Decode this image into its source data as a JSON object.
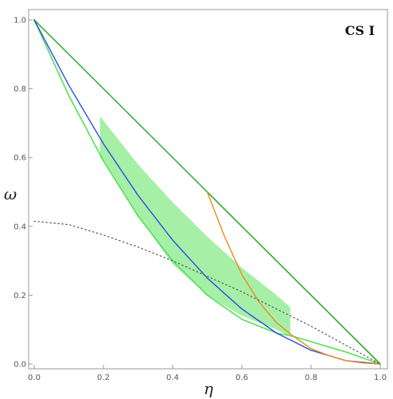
{
  "chart_data": {
    "type": "line",
    "title": "",
    "annotation": "CS I",
    "xlabel": "η",
    "ylabel": "ω",
    "xlim": [
      0.0,
      1.0
    ],
    "ylim": [
      0.0,
      1.0
    ],
    "x_ticks": [
      "0.0",
      "0.2",
      "0.4",
      "0.6",
      "0.8",
      "1.0"
    ],
    "y_ticks": [
      "0.0",
      "0.2",
      "0.4",
      "0.6",
      "0.8",
      "1.0"
    ],
    "grid": false,
    "legend": "none",
    "colors": {
      "green": "#3fae3f",
      "light_green": "#55e055",
      "band": "#a6efa6",
      "blue": "#2b4fe0",
      "orange": "#f08a1d",
      "dotted": "#555555"
    },
    "series": [
      {
        "style": "green-line",
        "x": [
          0.0,
          1.0
        ],
        "y": [
          1.0,
          0.0
        ]
      },
      {
        "style": "green-line",
        "x": [
          0.5,
          1.0
        ],
        "y": [
          0.5,
          0.0
        ]
      },
      {
        "style": "light-green-line",
        "x": [
          0.0,
          0.1,
          0.2,
          0.3,
          0.4,
          0.5,
          0.6,
          0.7,
          0.75,
          0.8,
          0.9,
          1.0
        ],
        "y": [
          1.0,
          0.78,
          0.59,
          0.43,
          0.3,
          0.2,
          0.13,
          0.09,
          0.08,
          0.065,
          0.035,
          0.0
        ]
      },
      {
        "style": "blue-line",
        "x": [
          0.0,
          0.1,
          0.2,
          0.3,
          0.4,
          0.5,
          0.6,
          0.7,
          0.8,
          0.9,
          1.0
        ],
        "y": [
          1.0,
          0.81,
          0.64,
          0.49,
          0.36,
          0.25,
          0.16,
          0.09,
          0.04,
          0.01,
          0.0
        ]
      },
      {
        "style": "orange-line",
        "x": [
          0.5,
          0.55,
          0.6,
          0.65,
          0.7,
          0.75,
          0.8,
          0.85,
          0.9,
          0.95,
          1.0
        ],
        "y": [
          0.5,
          0.37,
          0.26,
          0.18,
          0.12,
          0.08,
          0.045,
          0.025,
          0.01,
          0.003,
          0.0
        ]
      },
      {
        "style": "dotted-line",
        "x": [
          0.0,
          0.1,
          0.2,
          0.3,
          0.4,
          0.5,
          0.6,
          0.7,
          0.8,
          0.9,
          1.0
        ],
        "y": [
          0.415,
          0.405,
          0.375,
          0.34,
          0.3,
          0.255,
          0.21,
          0.16,
          0.11,
          0.055,
          0.0
        ]
      }
    ],
    "band": {
      "style": "shaded-region",
      "upper": {
        "x": [
          0.19,
          0.3,
          0.4,
          0.5,
          0.6,
          0.7,
          0.74
        ],
        "y": [
          0.72,
          0.58,
          0.47,
          0.37,
          0.28,
          0.2,
          0.165
        ]
      },
      "lower": {
        "x": [
          0.74,
          0.7,
          0.6,
          0.5,
          0.4,
          0.3,
          0.2,
          0.19
        ],
        "y": [
          0.08,
          0.1,
          0.14,
          0.2,
          0.29,
          0.43,
          0.59,
          0.6
        ]
      }
    }
  }
}
